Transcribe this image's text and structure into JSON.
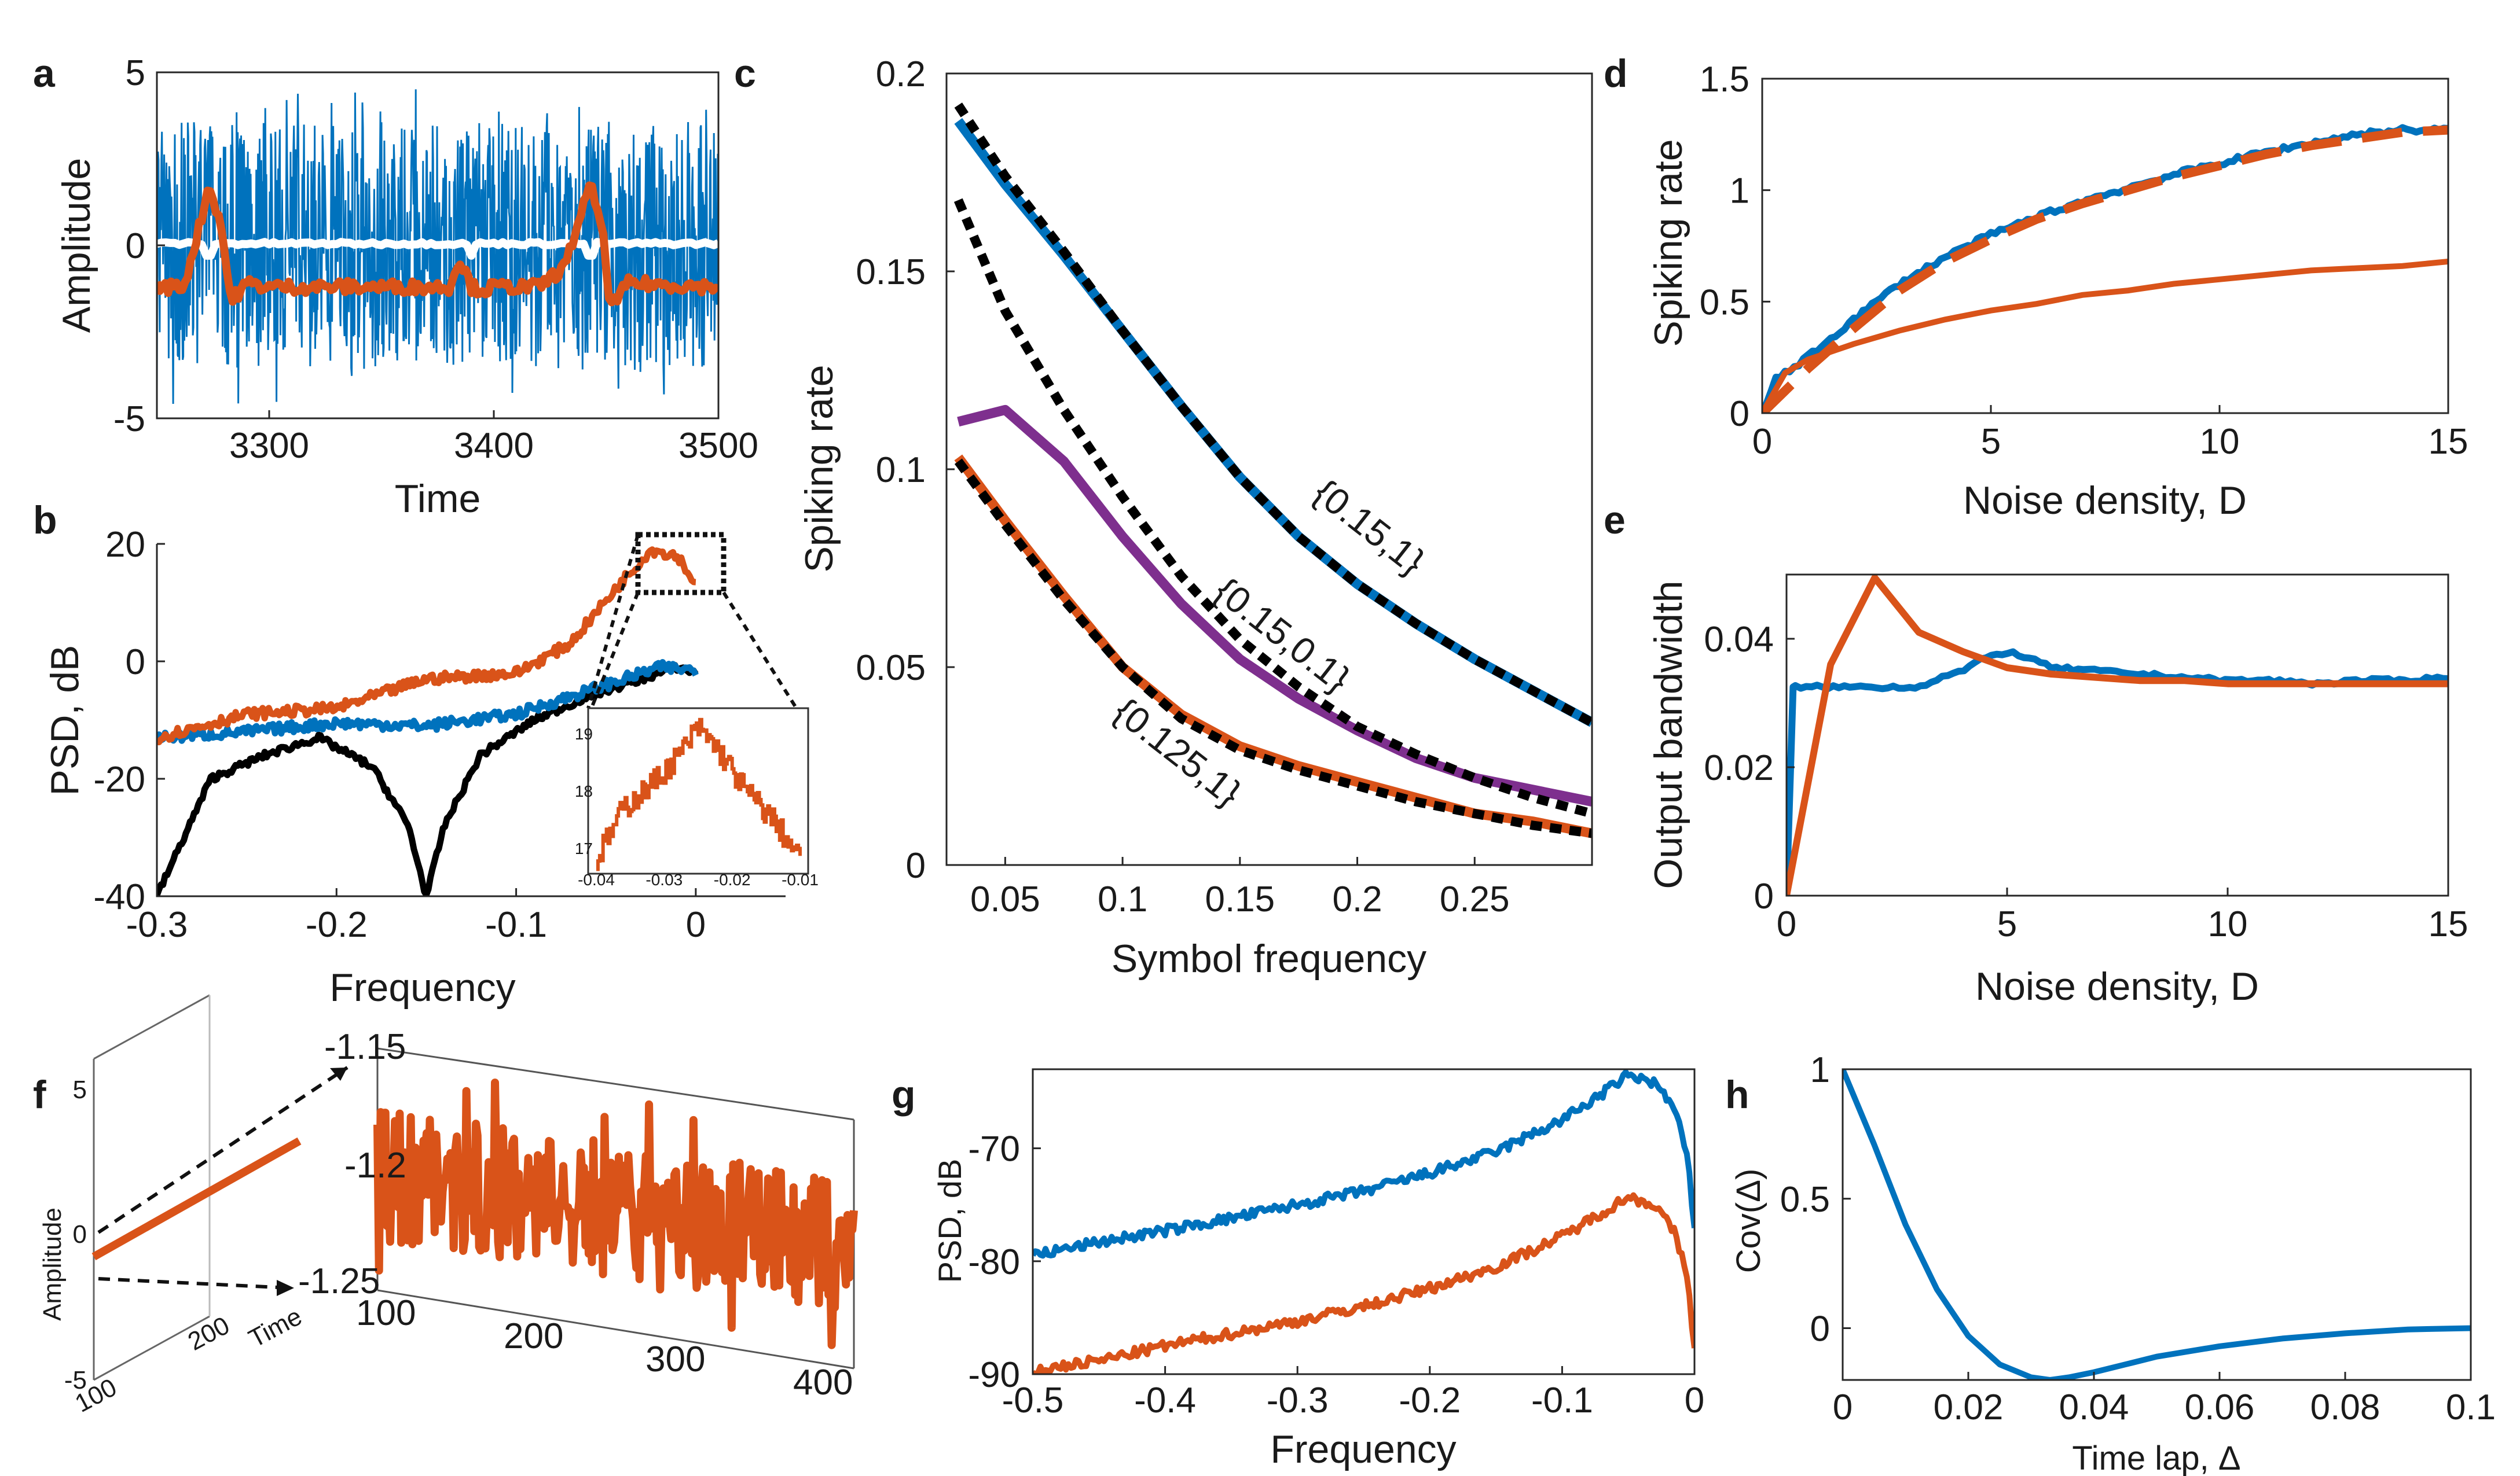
{
  "colors": {
    "blue": "#0072BD",
    "orange": "#D95319",
    "purple": "#7E2F8E",
    "black": "#000000",
    "white": "#ffffff",
    "gray": "#333333"
  },
  "panel_labels": {
    "a": "a",
    "b": "b",
    "c": "c",
    "d": "d",
    "e": "e",
    "f": "f",
    "g": "g",
    "h": "h"
  },
  "chart_data": [
    {
      "id": "a",
      "type": "line",
      "xlabel": "Time",
      "ylabel": "Amplitude",
      "xlim": [
        3250,
        3500
      ],
      "ylim": [
        -5,
        5
      ],
      "xticks": [
        "3300",
        "3400",
        "3500"
      ],
      "yticks": [
        "-5",
        "0",
        "5"
      ],
      "series": [
        {
          "color": "blue",
          "description": "noise band",
          "values_range": [
            -4.5,
            4.5
          ]
        },
        {
          "color": "white",
          "values_approx": 0
        },
        {
          "color": "orange",
          "baseline": -1.2,
          "peaks_x": [
            3273,
            3443
          ],
          "peak_y": 1.7
        }
      ]
    },
    {
      "id": "b",
      "type": "line",
      "xlabel": "Frequency",
      "ylabel": "PSD, dB",
      "xlim": [
        -0.3,
        0.05
      ],
      "ylim": [
        -40,
        20
      ],
      "xticks": [
        "-0.3",
        "-0.2",
        "-0.1",
        "0"
      ],
      "yticks": [
        "-40",
        "-20",
        "0",
        "20"
      ],
      "series": [
        {
          "color": "orange",
          "x": [
            -0.3,
            -0.25,
            -0.2,
            -0.15,
            -0.1,
            -0.07,
            -0.04,
            -0.025,
            -0.01,
            0
          ],
          "y": [
            -13,
            -9,
            -8,
            -3,
            -2,
            3,
            14,
            19,
            18,
            13
          ]
        },
        {
          "color": "blue",
          "x": [
            -0.3,
            -0.25,
            -0.2,
            -0.15,
            -0.1,
            -0.05,
            -0.02,
            0
          ],
          "y": [
            -13,
            -12,
            -10.5,
            -11,
            -9,
            -4,
            -1,
            -1.5
          ]
        },
        {
          "color": "black",
          "x": [
            -0.3,
            -0.27,
            -0.24,
            -0.21,
            -0.18,
            -0.16,
            -0.15,
            -0.14,
            -0.12,
            -0.09,
            -0.06,
            -0.03,
            -0.01,
            0
          ],
          "y": [
            -40,
            -20,
            -16,
            -13,
            -18,
            -28,
            -40,
            -28,
            -16,
            -10,
            -6,
            -3,
            -1,
            -2
          ]
        }
      ],
      "inset": {
        "xlim": [
          -0.04,
          -0.01
        ],
        "ylim": [
          16.7,
          19.3
        ],
        "xticks": [
          "-0.04",
          "-0.03",
          "-0.02",
          "-0.01"
        ],
        "yticks": [
          "17",
          "18",
          "19"
        ],
        "series": {
          "color": "orange",
          "x": [
            -0.04,
            -0.036,
            -0.032,
            -0.028,
            -0.025,
            -0.022,
            -0.018,
            -0.014,
            -0.01
          ],
          "y": [
            16.8,
            17.7,
            18.1,
            18.6,
            19.1,
            18.7,
            18.0,
            17.5,
            16.8
          ]
        }
      }
    },
    {
      "id": "c",
      "type": "line",
      "xlabel": "Symbol frequency",
      "ylabel": "Spiking rate",
      "xlim": [
        0.025,
        0.3
      ],
      "ylim": [
        0,
        0.2
      ],
      "xticks": [
        "0.05",
        "0.1",
        "0.15",
        "0.2",
        "0.25"
      ],
      "yticks": [
        "0",
        "0.05",
        "0.1",
        "0.15",
        "0.2"
      ],
      "annotations": [
        "{0.15,1}",
        "{0.15,0.1}",
        "{0.125,1}"
      ],
      "series": [
        {
          "color": "blue",
          "x": [
            0.03,
            0.05,
            0.075,
            0.1,
            0.125,
            0.15,
            0.175,
            0.2,
            0.225,
            0.25,
            0.275,
            0.3
          ],
          "y": [
            0.188,
            0.172,
            0.154,
            0.135,
            0.116,
            0.098,
            0.083,
            0.071,
            0.061,
            0.052,
            0.044,
            0.036
          ]
        },
        {
          "color": "purple",
          "x": [
            0.03,
            0.05,
            0.075,
            0.1,
            0.125,
            0.15,
            0.175,
            0.2,
            0.225,
            0.25,
            0.275,
            0.3
          ],
          "y": [
            0.112,
            0.115,
            0.102,
            0.083,
            0.066,
            0.052,
            0.042,
            0.034,
            0.027,
            0.022,
            0.019,
            0.016
          ]
        },
        {
          "color": "orange",
          "x": [
            0.03,
            0.05,
            0.075,
            0.1,
            0.125,
            0.15,
            0.175,
            0.2,
            0.225,
            0.25,
            0.275,
            0.3
          ],
          "y": [
            0.103,
            0.087,
            0.068,
            0.05,
            0.038,
            0.03,
            0.025,
            0.021,
            0.017,
            0.013,
            0.011,
            0.008
          ]
        },
        {
          "color": "black",
          "dashed": true,
          "x": [
            0.03,
            0.05,
            0.075,
            0.1,
            0.125,
            0.15,
            0.175,
            0.2,
            0.225,
            0.25,
            0.275,
            0.3
          ],
          "y": [
            0.192,
            0.174,
            0.155,
            0.135,
            0.116,
            0.098,
            0.083,
            0.071,
            0.061,
            0.052,
            0.044,
            0.036
          ]
        },
        {
          "color": "black",
          "dashed": true,
          "x": [
            0.03,
            0.05,
            0.075,
            0.1,
            0.125,
            0.15,
            0.175,
            0.2,
            0.225,
            0.25,
            0.275,
            0.3
          ],
          "y": [
            0.168,
            0.14,
            0.115,
            0.093,
            0.073,
            0.057,
            0.045,
            0.035,
            0.028,
            0.022,
            0.017,
            0.013
          ]
        },
        {
          "color": "black",
          "dashed": true,
          "x": [
            0.03,
            0.05,
            0.075,
            0.1,
            0.125,
            0.15,
            0.175,
            0.2,
            0.225,
            0.25,
            0.275,
            0.3
          ],
          "y": [
            0.102,
            0.086,
            0.067,
            0.05,
            0.037,
            0.029,
            0.024,
            0.02,
            0.016,
            0.013,
            0.01,
            0.008
          ]
        }
      ]
    },
    {
      "id": "d",
      "type": "line",
      "xlabel": "Noise density, D",
      "ylabel": "Spiking rate",
      "xlim": [
        0,
        15
      ],
      "ylim": [
        0,
        1.5
      ],
      "xticks": [
        "0",
        "5",
        "10",
        "15"
      ],
      "yticks": [
        "0",
        "0.5",
        "1",
        "1.5"
      ],
      "series": [
        {
          "color": "blue",
          "x": [
            0,
            0.3,
            1,
            2,
            3,
            4,
            5,
            6,
            7,
            8,
            9,
            10,
            11,
            12,
            13,
            14,
            15
          ],
          "y": [
            0,
            0.15,
            0.25,
            0.42,
            0.58,
            0.7,
            0.8,
            0.88,
            0.95,
            1.01,
            1.07,
            1.12,
            1.17,
            1.21,
            1.25,
            1.27,
            1.27
          ]
        },
        {
          "color": "orange",
          "dashed": true,
          "x": [
            0,
            1,
            2,
            3,
            4,
            5,
            6,
            7,
            8,
            9,
            10,
            11,
            12,
            13,
            14,
            15
          ],
          "y": [
            0,
            0.2,
            0.38,
            0.55,
            0.68,
            0.78,
            0.87,
            0.94,
            1.0,
            1.06,
            1.11,
            1.16,
            1.2,
            1.23,
            1.26,
            1.27
          ]
        },
        {
          "color": "orange",
          "x": [
            0,
            0.5,
            1,
            2,
            3,
            4,
            5,
            6,
            7,
            8,
            9,
            10,
            11,
            12,
            13,
            14,
            15
          ],
          "y": [
            0,
            0.18,
            0.24,
            0.31,
            0.37,
            0.42,
            0.46,
            0.49,
            0.53,
            0.55,
            0.58,
            0.6,
            0.62,
            0.64,
            0.65,
            0.66,
            0.68
          ]
        }
      ]
    },
    {
      "id": "e",
      "type": "line",
      "xlabel": "Noise density, D",
      "ylabel": "Output bandwidth",
      "xlim": [
        0,
        15
      ],
      "ylim": [
        0,
        0.05
      ],
      "xticks": [
        "0",
        "5",
        "10",
        "15"
      ],
      "yticks": [
        "0",
        "0.02",
        "0.04"
      ],
      "series": [
        {
          "color": "blue",
          "x": [
            0,
            0.15,
            0.2,
            1,
            2,
            3,
            3.5,
            4,
            4.5,
            5,
            5.5,
            6,
            7,
            8,
            9,
            10,
            11,
            12,
            13,
            14,
            15
          ],
          "y": [
            0,
            0.0325,
            0.0325,
            0.0325,
            0.0325,
            0.0325,
            0.034,
            0.035,
            0.037,
            0.038,
            0.037,
            0.0355,
            0.035,
            0.0345,
            0.034,
            0.0335,
            0.0335,
            0.033,
            0.0335,
            0.0335,
            0.034
          ]
        },
        {
          "color": "orange",
          "x": [
            0,
            0.5,
            1,
            2,
            3,
            4,
            5,
            6,
            7,
            8,
            9,
            10,
            11,
            12,
            13,
            14,
            15
          ],
          "y": [
            0,
            0.018,
            0.036,
            0.0495,
            0.041,
            0.038,
            0.0355,
            0.0345,
            0.034,
            0.0335,
            0.0335,
            0.033,
            0.033,
            0.033,
            0.033,
            0.033,
            0.033
          ]
        }
      ]
    },
    {
      "id": "f",
      "type": "line",
      "left": {
        "zlabel": "Amplitude",
        "xlabel": "Time",
        "zticks": [
          "5",
          "0",
          "-5"
        ],
        "xticks": [
          "100",
          "200"
        ]
      },
      "right": {
        "xticks": [
          "100",
          "200",
          "300",
          "400"
        ],
        "yticks": [
          "-1.15",
          "-1.2",
          "-1.25"
        ],
        "ylim": [
          -1.25,
          -1.15
        ],
        "xlim": [
          100,
          400
        ]
      },
      "series": [
        {
          "color": "orange",
          "mean": -1.2,
          "range": [
            -1.25,
            -1.15
          ]
        }
      ]
    },
    {
      "id": "g",
      "type": "line",
      "xlabel": "Frequency",
      "ylabel": "PSD, dB",
      "xlim": [
        -0.5,
        0
      ],
      "ylim": [
        -90,
        -63
      ],
      "xticks": [
        "-0.5",
        "-0.4",
        "-0.3",
        "-0.2",
        "-0.1",
        "0"
      ],
      "yticks": [
        "-90",
        "-80",
        "-70"
      ],
      "series": [
        {
          "color": "blue",
          "x": [
            -0.5,
            -0.45,
            -0.4,
            -0.35,
            -0.3,
            -0.25,
            -0.2,
            -0.15,
            -0.1,
            -0.07,
            -0.05,
            -0.03,
            -0.015,
            -0.005,
            0
          ],
          "y": [
            -79.5,
            -78.3,
            -77.3,
            -76.2,
            -75,
            -73.8,
            -72.2,
            -70.3,
            -67.5,
            -65.2,
            -63.5,
            -64.2,
            -66.5,
            -71,
            -77.5
          ]
        },
        {
          "color": "orange",
          "x": [
            -0.5,
            -0.45,
            -0.4,
            -0.35,
            -0.3,
            -0.25,
            -0.2,
            -0.15,
            -0.1,
            -0.07,
            -0.05,
            -0.03,
            -0.015,
            -0.005,
            0
          ],
          "y": [
            -89.7,
            -88.8,
            -87.5,
            -86.4,
            -85.3,
            -84,
            -82.4,
            -80.5,
            -77.8,
            -75.7,
            -74.3,
            -75,
            -77.5,
            -81.5,
            -88
          ]
        }
      ]
    },
    {
      "id": "h",
      "type": "line",
      "xlabel": "Time lap, Δ",
      "ylabel": "Cov(Δ)",
      "xlim": [
        0,
        0.1
      ],
      "ylim": [
        -0.2,
        1
      ],
      "xticks": [
        "0",
        "0.02",
        "0.04",
        "0.06",
        "0.08",
        "0.1"
      ],
      "yticks": [
        "0",
        "0.5",
        "1"
      ],
      "series": [
        {
          "color": "blue",
          "x": [
            0,
            0.005,
            0.01,
            0.015,
            0.02,
            0.025,
            0.03,
            0.033,
            0.036,
            0.04,
            0.045,
            0.05,
            0.06,
            0.07,
            0.08,
            0.09,
            0.1
          ],
          "y": [
            1,
            0.71,
            0.4,
            0.15,
            -0.03,
            -0.14,
            -0.19,
            -0.2,
            -0.19,
            -0.17,
            -0.14,
            -0.11,
            -0.07,
            -0.04,
            -0.02,
            -0.005,
            0
          ]
        }
      ]
    }
  ]
}
